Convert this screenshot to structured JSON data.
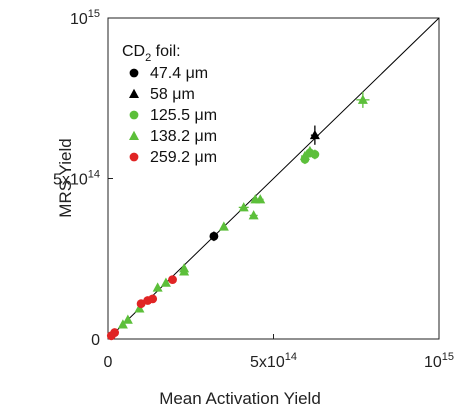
{
  "chart_data": {
    "type": "scatter",
    "xlabel": "Mean Activation Yield",
    "ylabel": "MRS Yield",
    "xlim": [
      0,
      1000000000000000.0
    ],
    "ylim": [
      0,
      1000000000000000.0
    ],
    "x_ticks": [
      {
        "value": 0,
        "label": "0"
      },
      {
        "value": 500000000000000.0,
        "base": "5x10",
        "exp": "14"
      },
      {
        "value": 1000000000000000.0,
        "base": "10",
        "exp": "15"
      }
    ],
    "y_ticks": [
      {
        "value": 0,
        "label": "0"
      },
      {
        "value": 500000000000000.0,
        "base": "5x10",
        "exp": "14"
      },
      {
        "value": 1000000000000000.0,
        "base": "10",
        "exp": "15"
      }
    ],
    "grid": false,
    "reference_line": {
      "slope": 1,
      "intercept": 0,
      "color": "#000000"
    },
    "legend": {
      "placement": "top-left",
      "title_prefix": "CD",
      "title_sub": "2",
      "title_suffix": " foil:"
    },
    "series": [
      {
        "name": "47.4 μm",
        "marker": "circle",
        "color": "#000000",
        "points": [
          {
            "x": 320000000000000.0,
            "y": 320000000000000.0,
            "yerr": 15000000000000.0
          }
        ]
      },
      {
        "name": "58 μm",
        "marker": "triangle",
        "color": "#000000",
        "points": [
          {
            "x": 625000000000000.0,
            "y": 635000000000000.0,
            "yerr": 30000000000000.0,
            "xerr": 12000000000000.0
          }
        ]
      },
      {
        "name": "125.5 μm",
        "marker": "circle",
        "color": "#5cbf3a",
        "points": [
          {
            "x": 595000000000000.0,
            "y": 560000000000000.0,
            "yerr": 15000000000000.0
          },
          {
            "x": 610000000000000.0,
            "y": 580000000000000.0,
            "yerr": 15000000000000.0
          },
          {
            "x": 625000000000000.0,
            "y": 575000000000000.0,
            "yerr": 15000000000000.0
          }
        ]
      },
      {
        "name": "138.2 μm",
        "marker": "triangle",
        "color": "#5cbf3a",
        "points": [
          {
            "x": 45000000000000.0,
            "y": 45000000000000.0
          },
          {
            "x": 60000000000000.0,
            "y": 60000000000000.0
          },
          {
            "x": 95000000000000.0,
            "y": 95000000000000.0
          },
          {
            "x": 150000000000000.0,
            "y": 160000000000000.0
          },
          {
            "x": 175000000000000.0,
            "y": 175000000000000.0
          },
          {
            "x": 230000000000000.0,
            "y": 210000000000000.0
          },
          {
            "x": 230000000000000.0,
            "y": 220000000000000.0
          },
          {
            "x": 350000000000000.0,
            "y": 350000000000000.0
          },
          {
            "x": 410000000000000.0,
            "y": 410000000000000.0,
            "xerr": 15000000000000.0
          },
          {
            "x": 440000000000000.0,
            "y": 385000000000000.0,
            "xerr": 12000000000000.0
          },
          {
            "x": 445000000000000.0,
            "y": 435000000000000.0,
            "xerr": 10000000000000.0
          },
          {
            "x": 460000000000000.0,
            "y": 435000000000000.0,
            "xerr": 10000000000000.0
          },
          {
            "x": 595000000000000.0,
            "y": 570000000000000.0,
            "xerr": 12000000000000.0
          },
          {
            "x": 610000000000000.0,
            "y": 585000000000000.0,
            "xerr": 12000000000000.0
          },
          {
            "x": 770000000000000.0,
            "y": 745000000000000.0,
            "yerr": 25000000000000.0,
            "xerr": 20000000000000.0
          }
        ]
      },
      {
        "name": "259.2 μm",
        "marker": "circle",
        "color": "#e02424",
        "points": [
          {
            "x": 10000000000000.0,
            "y": 10000000000000.0
          },
          {
            "x": 20000000000000.0,
            "y": 20000000000000.0
          },
          {
            "x": 100000000000000.0,
            "y": 110000000000000.0
          },
          {
            "x": 120000000000000.0,
            "y": 120000000000000.0
          },
          {
            "x": 135000000000000.0,
            "y": 125000000000000.0
          },
          {
            "x": 195000000000000.0,
            "y": 185000000000000.0
          }
        ]
      }
    ]
  }
}
